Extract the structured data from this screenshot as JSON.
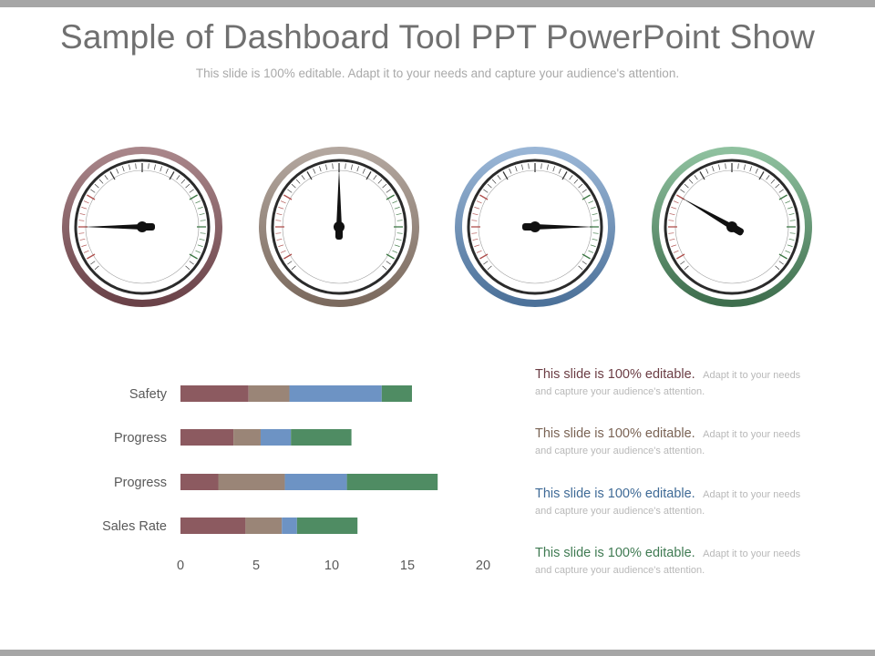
{
  "slide": {
    "title": "Sample of Dashboard Tool PPT PowerPoint Show",
    "subtitle": "This slide is 100% editable. Adapt it to your needs and capture your audience's attention."
  },
  "gauges": [
    {
      "ring_color_top": "#a9868a",
      "ring_color_bottom": "#6a4248",
      "needle_angle_deg": 270
    },
    {
      "ring_color_top": "#b3a79f",
      "ring_color_bottom": "#7b6a5e",
      "needle_angle_deg": 0
    },
    {
      "ring_color_top": "#9ab6d6",
      "ring_color_bottom": "#4c7199",
      "needle_angle_deg": 90
    },
    {
      "ring_color_top": "#8fc19f",
      "ring_color_bottom": "#3e6e4d",
      "needle_angle_deg": 300
    }
  ],
  "chart_data": {
    "type": "bar",
    "orientation": "horizontal",
    "stacked": true,
    "categories": [
      "Safety",
      "Progress",
      "Progress",
      "Sales Rate"
    ],
    "series": [
      {
        "color": "#8c5a60",
        "values": [
          4.5,
          3.5,
          2.5,
          4.3
        ]
      },
      {
        "color": "#9a8577",
        "values": [
          2.7,
          1.8,
          4.4,
          2.4
        ]
      },
      {
        "color": "#6d93c4",
        "values": [
          6.1,
          2.0,
          4.1,
          1.0
        ]
      },
      {
        "color": "#4f8c63",
        "values": [
          2.0,
          4.0,
          6.0,
          4.0
        ]
      }
    ],
    "xlim": [
      0,
      20
    ],
    "xticks": [
      "0",
      "5",
      "10",
      "15",
      "20"
    ]
  },
  "notes": [
    {
      "head": "This slide is 100% editable.",
      "text": "Adapt it to your needs and capture your audience's attention.",
      "color": "#6b3d44"
    },
    {
      "head": "This slide is 100% editable.",
      "text": "Adapt it to your needs and capture your audience's attention.",
      "color": "#7a6354"
    },
    {
      "head": "This slide is 100% editable.",
      "text": "Adapt it to your needs and capture your audience's attention.",
      "color": "#3f6a96"
    },
    {
      "head": "This slide is 100% editable.",
      "text": "Adapt it to your needs and capture your audience's attention.",
      "color": "#3f7a52"
    }
  ]
}
